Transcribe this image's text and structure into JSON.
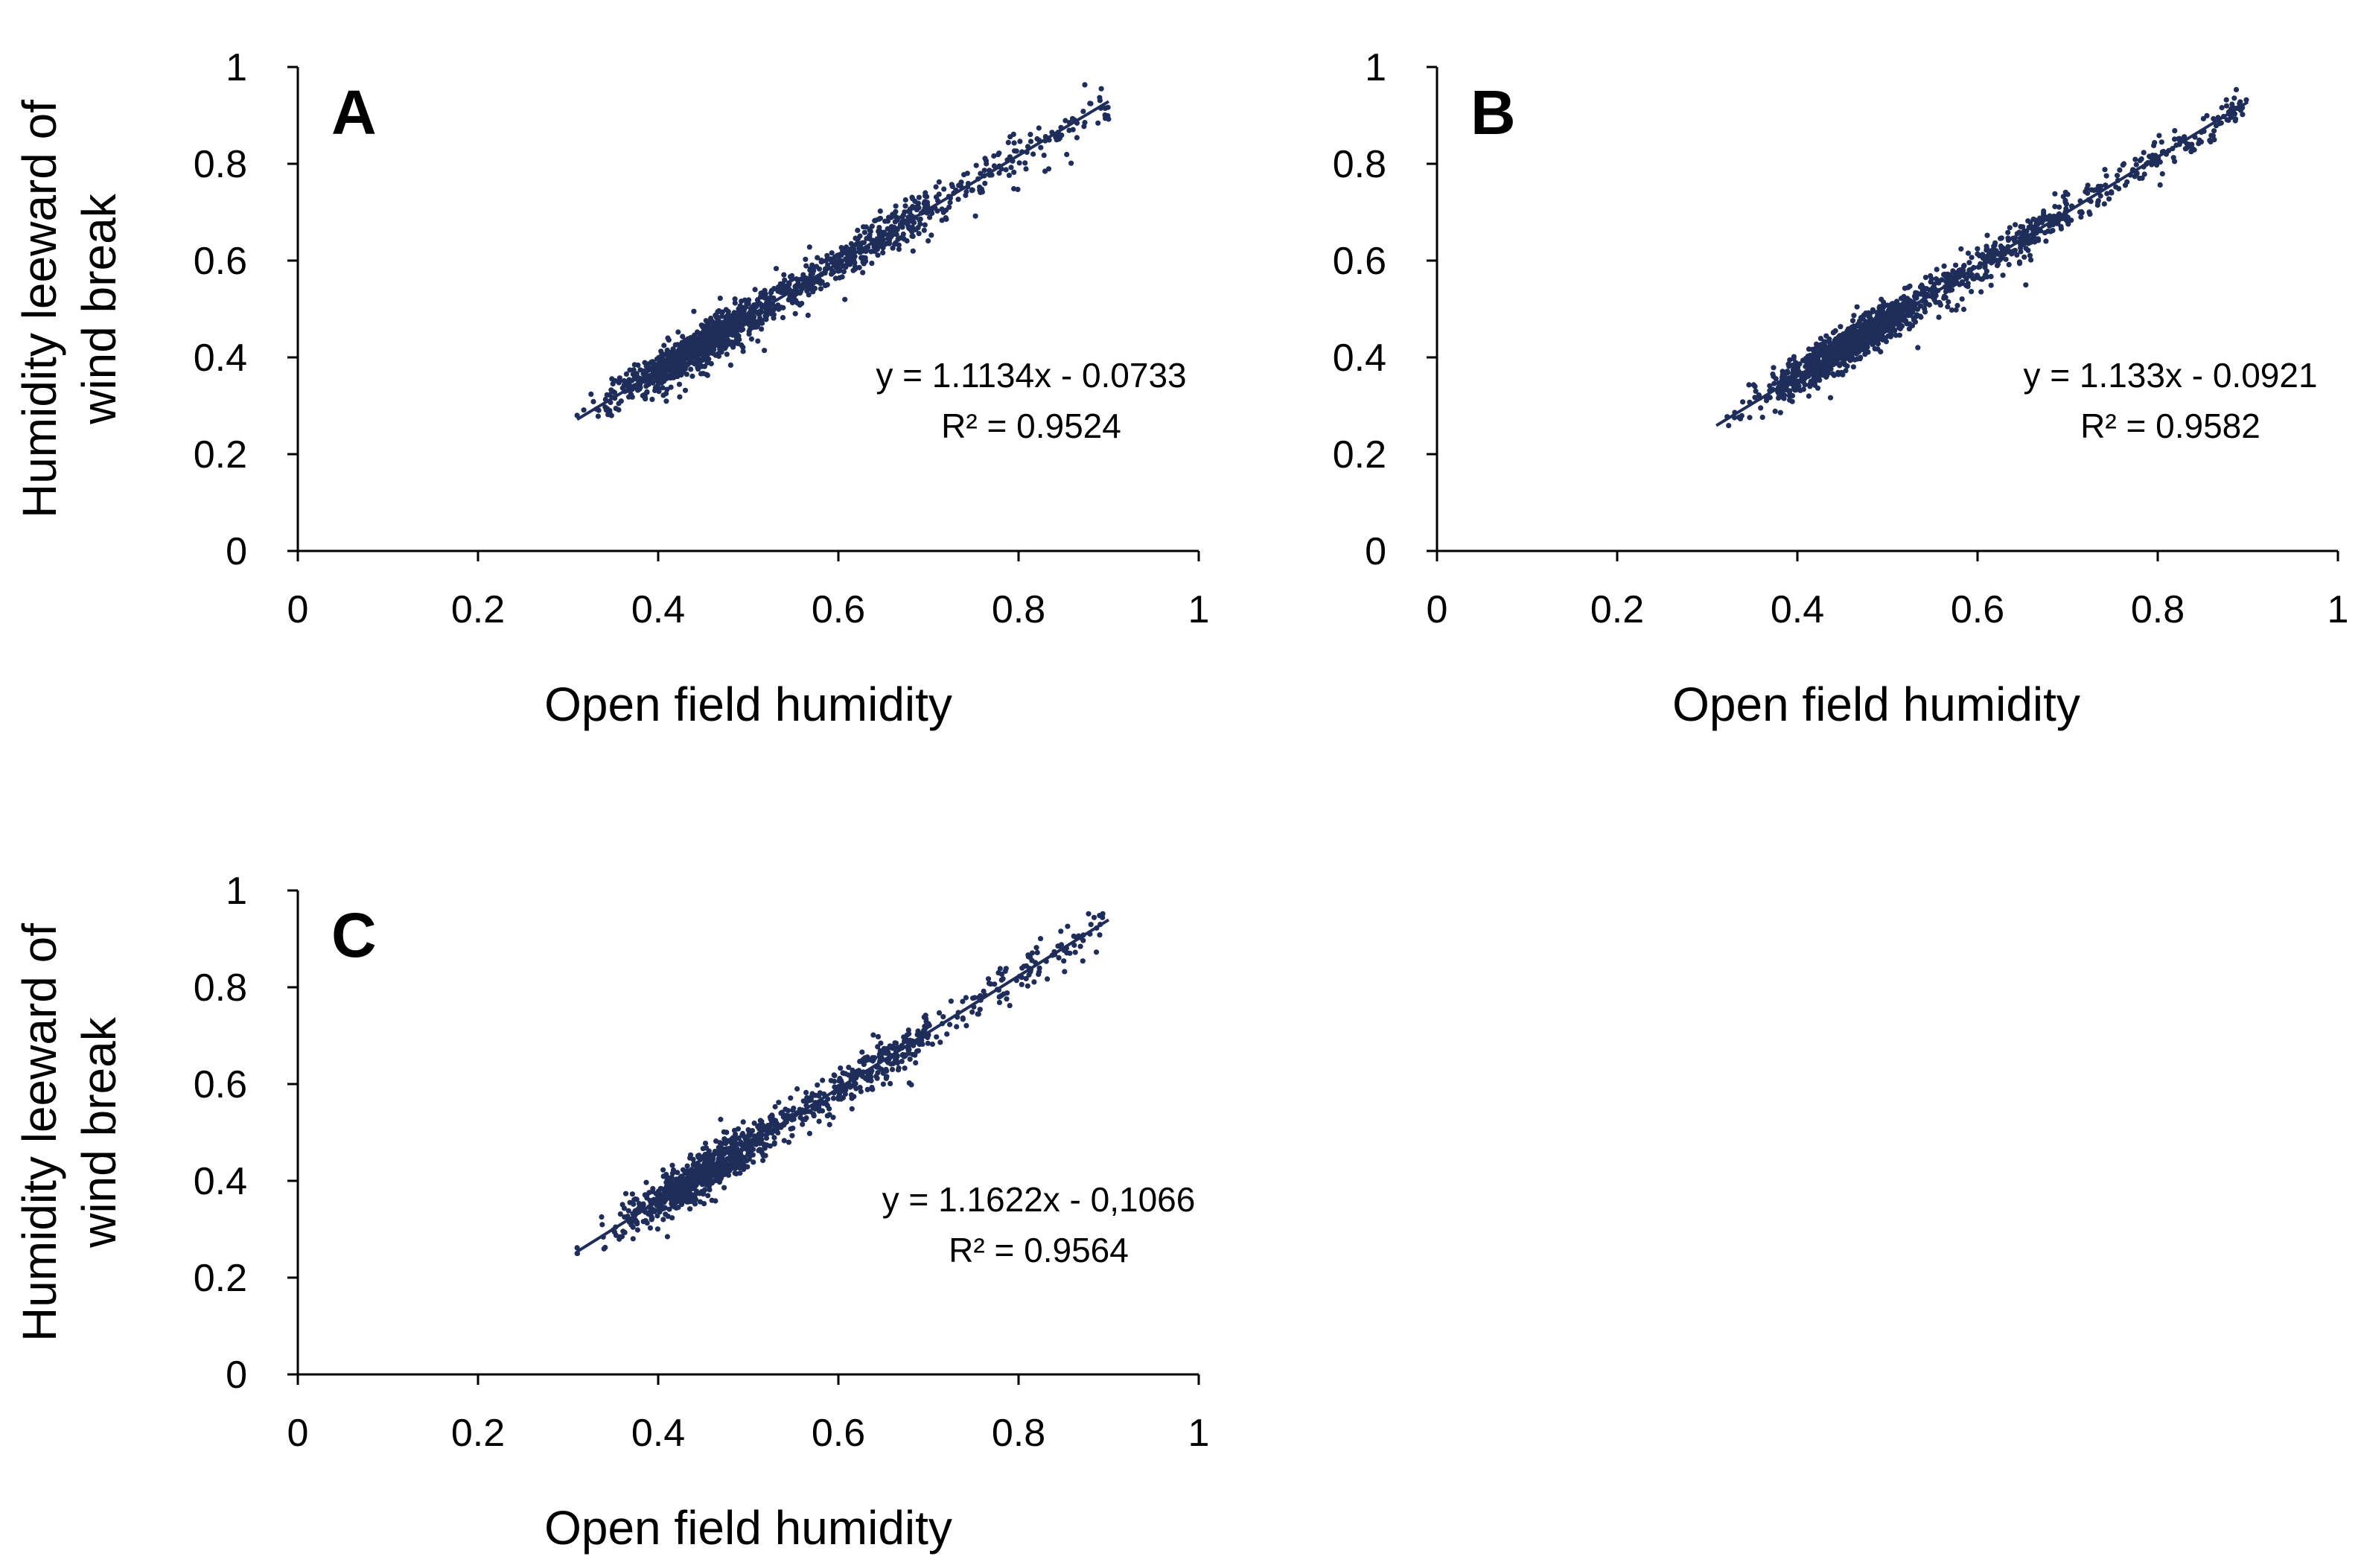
{
  "figure": {
    "colors": {
      "points": "#1f2d5a",
      "line": "#1f2d5a",
      "axis": "#000000",
      "background": "#ffffff"
    }
  },
  "chart_data": [
    {
      "type": "scatter",
      "panel_label": "A",
      "xlabel": "Open field humidity",
      "ylabel_line1": "Humidity leeward of",
      "ylabel_line2": "wind break",
      "xlim": [
        0,
        1
      ],
      "ylim": [
        0,
        1
      ],
      "xticks": [
        "0",
        "0.2",
        "0.4",
        "0.6",
        "0.8",
        "1"
      ],
      "yticks": [
        "0",
        "0.2",
        "0.4",
        "0.6",
        "0.8",
        "1"
      ],
      "grid": false,
      "trendline": {
        "slope": 1.1134,
        "intercept": -0.0733,
        "x_range": [
          0.31,
          0.9
        ]
      },
      "equation": "y = 1.1134x - 0.0733",
      "r_squared": "R² = 0.9524",
      "scatter": {
        "n_points": 1400,
        "x_range": [
          0.31,
          0.9
        ],
        "x_center": 0.44,
        "spread": 0.022,
        "seed": 11
      }
    },
    {
      "type": "scatter",
      "panel_label": "B",
      "xlabel": "Open field humidity",
      "ylabel_line1": "",
      "ylabel_line2": "",
      "xlim": [
        0,
        1
      ],
      "ylim": [
        0,
        1
      ],
      "xticks": [
        "0",
        "0.2",
        "0.4",
        "0.6",
        "0.8",
        "1"
      ],
      "yticks": [
        "0",
        "0.2",
        "0.4",
        "0.6",
        "0.8",
        "1"
      ],
      "grid": false,
      "trendline": {
        "slope": 1.133,
        "intercept": -0.0921,
        "x_range": [
          0.31,
          0.9
        ]
      },
      "equation": "y = 1.133x - 0.0921",
      "r_squared": "R² = 0.9582",
      "scatter": {
        "n_points": 1400,
        "x_range": [
          0.31,
          0.9
        ],
        "x_center": 0.45,
        "spread": 0.02,
        "seed": 23
      }
    },
    {
      "type": "scatter",
      "panel_label": "C",
      "xlabel": "Open field humidity",
      "ylabel_line1": "Humidity leeward of",
      "ylabel_line2": "wind break",
      "xlim": [
        0,
        1
      ],
      "ylim": [
        0,
        1
      ],
      "xticks": [
        "0",
        "0.2",
        "0.4",
        "0.6",
        "0.8",
        "1"
      ],
      "yticks": [
        "0",
        "0.2",
        "0.4",
        "0.6",
        "0.8",
        "1"
      ],
      "grid": false,
      "trendline": {
        "slope": 1.1622,
        "intercept": -0.1066,
        "x_range": [
          0.31,
          0.9
        ]
      },
      "equation": "y = 1.1622x - 0,1066",
      "r_squared": "R² = 0.9564",
      "scatter": {
        "n_points": 1200,
        "x_range": [
          0.31,
          0.9
        ],
        "x_center": 0.44,
        "spread": 0.022,
        "seed": 37
      }
    }
  ]
}
